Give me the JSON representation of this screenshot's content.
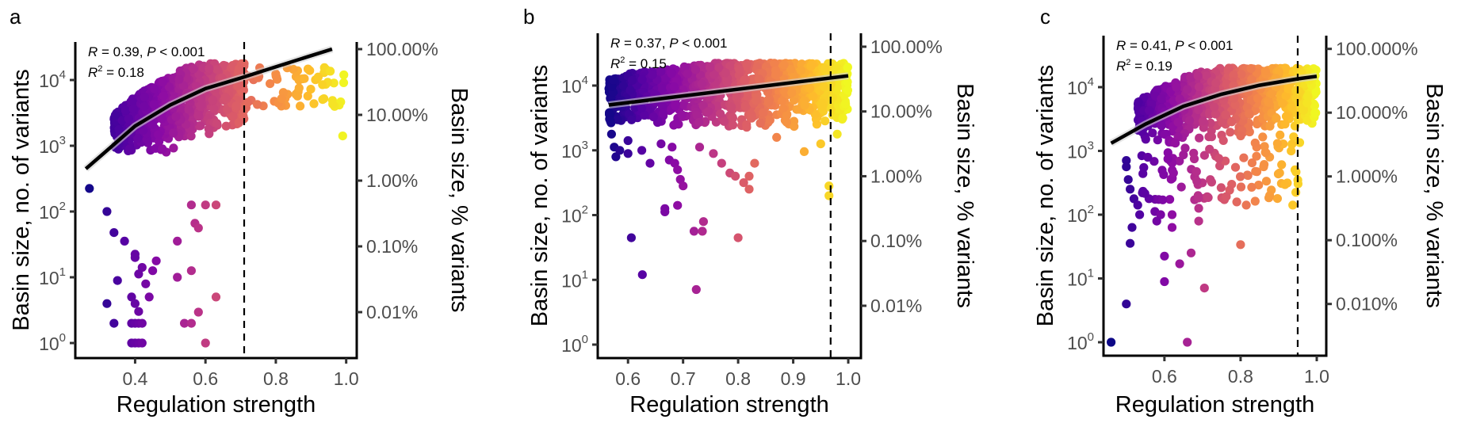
{
  "figure": {
    "panels": [
      "a",
      "b",
      "c"
    ]
  },
  "chart_data": [
    {
      "type": "scatter",
      "panel_label": "a",
      "title": "",
      "xlabel": "Regulation strength",
      "ylabel": "Basin size, no. of variants",
      "ylabel_right": "Basin size, % variants",
      "xlim": [
        0.23,
        1.03
      ],
      "x_ticks": [
        0.4,
        0.6,
        0.8,
        1.0
      ],
      "x_tick_labels": [
        "0.4",
        "0.6",
        "0.8",
        "1.0"
      ],
      "y_scale": "log10",
      "ylim_log10": [
        -0.22,
        4.6
      ],
      "y_ticks_log10": [
        0,
        1,
        2,
        3,
        4
      ],
      "y_tick_labels": [
        {
          "base": "10",
          "exp": "0"
        },
        {
          "base": "10",
          "exp": "1"
        },
        {
          "base": "10",
          "exp": "2"
        },
        {
          "base": "10",
          "exp": "3"
        },
        {
          "base": "10",
          "exp": "4"
        }
      ],
      "y_right_ticks_log10": [
        4.47,
        3.47,
        2.47,
        1.47,
        0.47
      ],
      "y_right_tick_labels": [
        "100.00%",
        "10.00%",
        "1.00%",
        "0.10%",
        "0.01%"
      ],
      "threshold_x": 0.71,
      "stats": {
        "R": "0.39",
        "P": "< 0.001",
        "R2": "0.18"
      },
      "fit": {
        "type": "linear-in-x on log10 y (curved on log axis)",
        "x": [
          0.26,
          0.4,
          0.5,
          0.6,
          0.7,
          0.8,
          0.9,
          0.96
        ],
        "y_log10": [
          2.65,
          3.3,
          3.62,
          3.87,
          4.03,
          4.2,
          4.37,
          4.47
        ]
      },
      "color_scale": "plasma (by regulation strength)",
      "series": [
        {
          "name": "dense cloud",
          "x_range": [
            0.34,
            0.71
          ],
          "y_log10_range": [
            2.9,
            4.25
          ],
          "n": 900
        },
        {
          "name": "upper tail",
          "x_range": [
            0.71,
            1.0
          ],
          "y_log10_range": [
            3.55,
            4.2
          ],
          "n": 60
        },
        {
          "name": "sparse low points",
          "points": [
            [
              0.27,
              2.35
            ],
            [
              0.32,
              2.0
            ],
            [
              0.34,
              1.68
            ],
            [
              0.37,
              1.55
            ],
            [
              0.4,
              1.35
            ],
            [
              0.4,
              1.3
            ],
            [
              0.42,
              1.15
            ],
            [
              0.41,
              1.05
            ],
            [
              0.45,
              1.1
            ],
            [
              0.46,
              1.25
            ],
            [
              0.35,
              0.95
            ],
            [
              0.32,
              0.6
            ],
            [
              0.39,
              0.7
            ],
            [
              0.44,
              0.7
            ],
            [
              0.4,
              0.6
            ],
            [
              0.41,
              0.48
            ],
            [
              0.43,
              0.9
            ],
            [
              0.52,
              1.0
            ],
            [
              0.56,
              1.1
            ],
            [
              0.52,
              1.55
            ],
            [
              0.57,
              1.82
            ],
            [
              0.58,
              1.75
            ],
            [
              0.34,
              0.3
            ],
            [
              0.39,
              0.3
            ],
            [
              0.4,
              0.3
            ],
            [
              0.41,
              0.3
            ],
            [
              0.42,
              0.3
            ],
            [
              0.54,
              0.3
            ],
            [
              0.56,
              0.3
            ],
            [
              0.58,
              0.47
            ],
            [
              0.63,
              0.7
            ],
            [
              0.39,
              0
            ],
            [
              0.4,
              0
            ],
            [
              0.41,
              0
            ],
            [
              0.42,
              0
            ],
            [
              0.6,
              0
            ],
            [
              0.63,
              2.1
            ],
            [
              0.6,
              2.1
            ],
            [
              0.56,
              2.1
            ],
            [
              0.99,
              3.15
            ]
          ]
        }
      ]
    },
    {
      "type": "scatter",
      "panel_label": "b",
      "title": "",
      "xlabel": "Regulation strength",
      "ylabel": "Basin size, no. of variants",
      "ylabel_right": "Basin size, % variants",
      "xlim": [
        0.545,
        1.023
      ],
      "x_ticks": [
        0.6,
        0.7,
        0.8,
        0.9,
        1.0
      ],
      "x_tick_labels": [
        "0.6",
        "0.7",
        "0.8",
        "0.9",
        "1.0"
      ],
      "y_scale": "log10",
      "ylim_log10": [
        -0.22,
        4.82
      ],
      "y_ticks_log10": [
        0,
        1,
        2,
        3,
        4
      ],
      "y_tick_labels": [
        {
          "base": "10",
          "exp": "0"
        },
        {
          "base": "10",
          "exp": "1"
        },
        {
          "base": "10",
          "exp": "2"
        },
        {
          "base": "10",
          "exp": "3"
        },
        {
          "base": "10",
          "exp": "4"
        }
      ],
      "y_right_ticks_log10": [
        4.6,
        3.6,
        2.6,
        1.6,
        0.6
      ],
      "y_right_tick_labels": [
        "100.00%",
        "10.00%",
        "1.00%",
        "0.10%",
        "0.01%"
      ],
      "threshold_x": 0.968,
      "stats": {
        "R": "0.37",
        "P": "< 0.001",
        "R2": "0.15"
      },
      "fit": {
        "type": "linear",
        "x": [
          0.565,
          1.0
        ],
        "y_log10": [
          3.7,
          4.15
        ]
      },
      "color_scale": "plasma (by regulation strength)",
      "series": [
        {
          "name": "dense cloud",
          "x_range": [
            0.565,
            1.0
          ],
          "y_log10_range": [
            3.35,
            4.35
          ],
          "n": 1100
        },
        {
          "name": "sparse low points",
          "points": [
            [
              0.567,
              3.55
            ],
            [
              0.568,
              3.45
            ],
            [
              0.57,
              3.25
            ],
            [
              0.575,
              3.05
            ],
            [
              0.578,
              2.9
            ],
            [
              0.585,
              3.0
            ],
            [
              0.6,
              2.95
            ],
            [
              0.6,
              3.15
            ],
            [
              0.625,
              3.0
            ],
            [
              0.64,
              2.8
            ],
            [
              0.66,
              3.1
            ],
            [
              0.675,
              2.85
            ],
            [
              0.68,
              3.05
            ],
            [
              0.685,
              2.8
            ],
            [
              0.69,
              2.7
            ],
            [
              0.695,
              2.55
            ],
            [
              0.7,
              2.45
            ],
            [
              0.73,
              3.05
            ],
            [
              0.755,
              2.95
            ],
            [
              0.77,
              2.8
            ],
            [
              0.785,
              2.65
            ],
            [
              0.795,
              2.6
            ],
            [
              0.81,
              2.5
            ],
            [
              0.82,
              2.6
            ],
            [
              0.83,
              2.8
            ],
            [
              0.82,
              2.4
            ],
            [
              0.87,
              3.2
            ],
            [
              0.92,
              2.98
            ],
            [
              0.95,
              3.1
            ],
            [
              0.965,
              2.45
            ],
            [
              0.965,
              2.3
            ],
            [
              0.667,
              2.1
            ],
            [
              0.667,
              2.05
            ],
            [
              0.69,
              2.15
            ],
            [
              0.606,
              1.65
            ],
            [
              0.626,
              1.08
            ],
            [
              0.72,
              1.75
            ],
            [
              0.735,
              1.75
            ],
            [
              0.737,
              1.9
            ],
            [
              0.724,
              0.85
            ],
            [
              0.8,
              1.65
            ],
            [
              0.98,
              3.25
            ],
            [
              0.99,
              3.5
            ]
          ]
        }
      ]
    },
    {
      "type": "scatter",
      "panel_label": "c",
      "title": "",
      "xlabel": "Regulation strength",
      "ylabel": "Basin size, no. of variants",
      "ylabel_right": "Basin size, % variants",
      "xlim": [
        0.44,
        1.025
      ],
      "x_ticks": [
        0.6,
        0.8,
        1.0
      ],
      "x_tick_labels": [
        "0.6",
        "0.8",
        "1.0"
      ],
      "y_scale": "log10",
      "ylim_log10": [
        -0.22,
        4.8
      ],
      "y_ticks_log10": [
        0,
        1,
        2,
        3,
        4
      ],
      "y_tick_labels": [
        {
          "base": "10",
          "exp": "0"
        },
        {
          "base": "10",
          "exp": "1"
        },
        {
          "base": "10",
          "exp": "2"
        },
        {
          "base": "10",
          "exp": "3"
        },
        {
          "base": "10",
          "exp": "4"
        }
      ],
      "y_right_ticks_log10": [
        4.6,
        3.6,
        2.6,
        1.6,
        0.6
      ],
      "y_right_tick_labels": [
        "100.000%",
        "10.000%",
        "1.000%",
        "0.100%",
        "0.010%"
      ],
      "threshold_x": 0.95,
      "stats": {
        "R": "0.41",
        "P": "< 0.001",
        "R2": "0.19"
      },
      "fit": {
        "type": "curved on log axis",
        "x": [
          0.46,
          0.55,
          0.65,
          0.75,
          0.85,
          0.95,
          1.0
        ],
        "y_log10": [
          3.12,
          3.42,
          3.7,
          3.89,
          4.03,
          4.13,
          4.17
        ]
      },
      "color_scale": "plasma (by regulation strength)",
      "series": [
        {
          "name": "dense cloud",
          "x_range": [
            0.53,
            1.0
          ],
          "y_log10_range": [
            3.2,
            4.3
          ],
          "n": 900
        },
        {
          "name": "mid scatter",
          "x_range": [
            0.54,
            0.97
          ],
          "y_log10_range": [
            2.2,
            3.3
          ],
          "n": 120
        },
        {
          "name": "sparse low points",
          "points": [
            [
              0.5,
              2.85
            ],
            [
              0.5,
              2.75
            ],
            [
              0.505,
              2.55
            ],
            [
              0.51,
              2.4
            ],
            [
              0.52,
              2.25
            ],
            [
              0.515,
              1.8
            ],
            [
              0.51,
              1.55
            ],
            [
              0.53,
              2.15
            ],
            [
              0.535,
              2.0
            ],
            [
              0.575,
              2.05
            ],
            [
              0.59,
              2.0
            ],
            [
              0.58,
              1.9
            ],
            [
              0.62,
              2.0
            ],
            [
              0.62,
              1.8
            ],
            [
              0.6,
              1.35
            ],
            [
              0.64,
              1.23
            ],
            [
              0.67,
              1.4
            ],
            [
              0.6,
              0.95
            ],
            [
              0.705,
              0.85
            ],
            [
              0.5,
              0.6
            ],
            [
              0.46,
              0
            ],
            [
              0.66,
              0
            ],
            [
              0.69,
              1.9
            ],
            [
              0.69,
              2.1
            ],
            [
              0.8,
              1.53
            ],
            [
              0.79,
              2.2
            ],
            [
              0.815,
              2.15
            ],
            [
              0.937,
              2.15
            ],
            [
              0.945,
              2.35
            ]
          ]
        }
      ]
    }
  ]
}
